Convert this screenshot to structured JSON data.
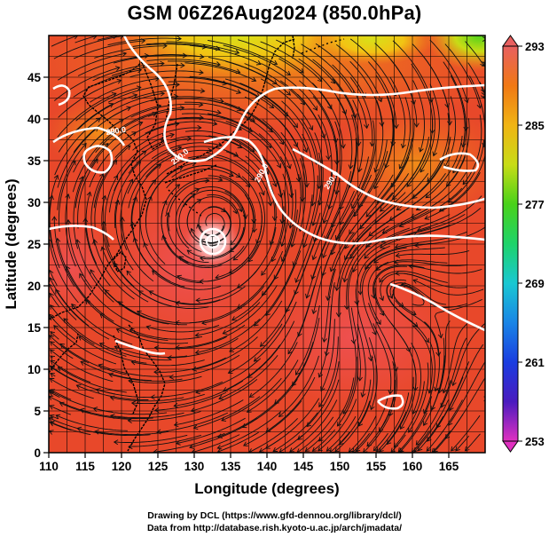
{
  "title": "GSM 06Z26Aug2024 (850.0hPa)",
  "credits": {
    "line1": "Drawing by DCL (https://www.gfd-dennou.org/library/dcl/)",
    "line2": "Data from http://database.rish.kyoto-u.ac.jp/arch/jmadata/"
  },
  "map": {
    "xlabel": "Longitude (degrees)",
    "ylabel": "Latitude  (degrees)",
    "xlim": [
      110,
      170
    ],
    "ylim": [
      0,
      50
    ],
    "xticks": [
      110,
      115,
      120,
      125,
      130,
      135,
      140,
      145,
      150,
      155,
      160,
      165
    ],
    "yticks": [
      0,
      5,
      10,
      15,
      20,
      25,
      30,
      35,
      40,
      45
    ],
    "grid": true,
    "field": "temperature (K)",
    "colorbar": {
      "min": 253,
      "max": 293,
      "ticks": [
        253,
        261,
        269,
        277,
        285,
        293
      ],
      "colors": [
        "#e030c0",
        "#4a1bbf",
        "#1a3de0",
        "#19a0e6",
        "#1ed39a",
        "#49d21a",
        "#c8dc16",
        "#f0b414",
        "#f07814",
        "#e8502a",
        "#e86060"
      ]
    },
    "contour_labels": [
      "290.0",
      "290.0",
      "290.0",
      "290.0"
    ],
    "typhoon_center": {
      "lon": 132.7,
      "lat": 27.5
    },
    "colors": {
      "background": "#e8482a",
      "coast": "#000000",
      "contour": "#ffffff",
      "grid": "#000000"
    }
  }
}
